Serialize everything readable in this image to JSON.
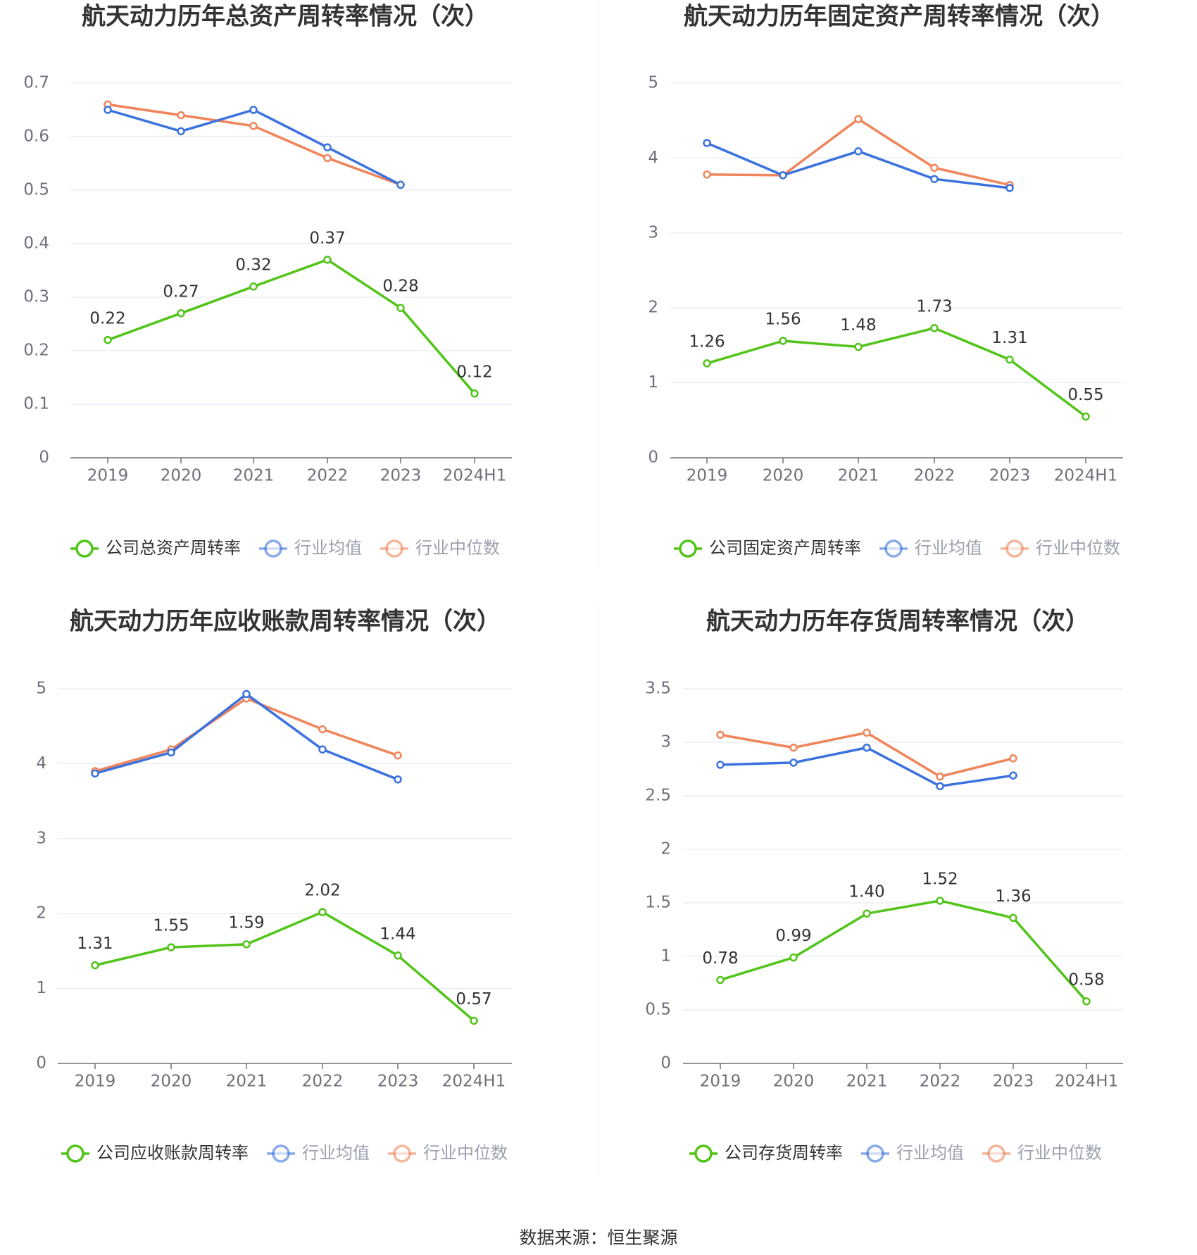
{
  "colors": {
    "company": "#52c41a",
    "average": "#3b72de",
    "median": "#f0845a",
    "grid": "#e0e6f1",
    "axis": "#6e7079",
    "title": "#333333"
  },
  "legend_labels": [
    "行业均值",
    "行业中位数"
  ],
  "chart_data": [
    {
      "type": "line",
      "title": "航天动力历年总资产周转率情况（次）",
      "categories": [
        "2019",
        "2020",
        "2021",
        "2022",
        "2023",
        "2024H1"
      ],
      "ylim": [
        0,
        0.7
      ],
      "yticks": [
        "0",
        "0.1",
        "0.2",
        "0.3",
        "0.4",
        "0.5",
        "0.6",
        "0.7"
      ],
      "series": [
        {
          "name": "公司总资产周转率",
          "values": [
            0.22,
            0.27,
            0.32,
            0.37,
            0.28,
            0.12
          ],
          "labels": [
            "0.22",
            "0.27",
            "0.32",
            "0.37",
            "0.28",
            "0.12"
          ]
        },
        {
          "name": "行业均值",
          "values": [
            0.65,
            0.61,
            0.65,
            0.58,
            0.51,
            null
          ]
        },
        {
          "name": "行业中位数",
          "values": [
            0.66,
            0.64,
            0.62,
            0.56,
            0.51,
            null
          ]
        }
      ]
    },
    {
      "type": "line",
      "title": "航天动力历年固定资产周转率情况（次）",
      "categories": [
        "2019",
        "2020",
        "2021",
        "2022",
        "2023",
        "2024H1"
      ],
      "ylim": [
        0,
        5
      ],
      "yticks": [
        "0",
        "1",
        "2",
        "3",
        "4",
        "5"
      ],
      "series": [
        {
          "name": "公司固定资产周转率",
          "values": [
            1.26,
            1.56,
            1.48,
            1.73,
            1.31,
            0.55
          ],
          "labels": [
            "1.26",
            "1.56",
            "1.48",
            "1.73",
            "1.31",
            "0.55"
          ]
        },
        {
          "name": "行业均值",
          "values": [
            4.2,
            3.77,
            4.09,
            3.72,
            3.6,
            null
          ]
        },
        {
          "name": "行业中位数",
          "values": [
            3.78,
            3.77,
            4.52,
            3.87,
            3.64,
            null
          ]
        }
      ]
    },
    {
      "type": "line",
      "title": "航天动力历年应收账款周转率情况（次）",
      "categories": [
        "2019",
        "2020",
        "2021",
        "2022",
        "2023",
        "2024H1"
      ],
      "ylim": [
        0,
        5
      ],
      "yticks": [
        "0",
        "1",
        "2",
        "3",
        "4",
        "5"
      ],
      "series": [
        {
          "name": "公司应收账款周转率",
          "values": [
            1.31,
            1.55,
            1.59,
            2.02,
            1.44,
            0.57
          ],
          "labels": [
            "1.31",
            "1.55",
            "1.59",
            "2.02",
            "1.44",
            "0.57"
          ]
        },
        {
          "name": "行业均值",
          "values": [
            3.87,
            4.15,
            4.93,
            4.19,
            3.79,
            null
          ]
        },
        {
          "name": "行业中位数",
          "values": [
            3.9,
            4.19,
            4.87,
            4.46,
            4.11,
            null
          ]
        }
      ]
    },
    {
      "type": "line",
      "title": "航天动力历年存货周转率情况（次）",
      "categories": [
        "2019",
        "2020",
        "2021",
        "2022",
        "2023",
        "2024H1"
      ],
      "ylim": [
        0,
        3.5
      ],
      "yticks": [
        "0",
        "0.5",
        "1",
        "1.5",
        "2",
        "2.5",
        "3",
        "3.5"
      ],
      "series": [
        {
          "name": "公司存货周转率",
          "values": [
            0.78,
            0.99,
            1.4,
            1.52,
            1.36,
            0.58
          ],
          "labels": [
            "0.78",
            "0.99",
            "1.40",
            "1.52",
            "1.36",
            "0.58"
          ]
        },
        {
          "name": "行业均值",
          "values": [
            2.79,
            2.81,
            2.95,
            2.59,
            2.69,
            null
          ]
        },
        {
          "name": "行业中位数",
          "values": [
            3.07,
            2.95,
            3.09,
            2.68,
            2.85,
            null
          ]
        }
      ]
    }
  ],
  "source": "数据来源：恒生聚源"
}
